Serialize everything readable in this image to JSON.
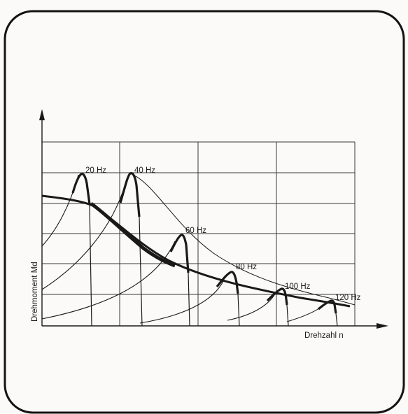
{
  "diagram": {
    "y_axis_label": "Drehmoment Md",
    "x_axis_label": "Drehzahl n",
    "curves": [
      {
        "label": "20 Hz"
      },
      {
        "label": "40 Hz"
      },
      {
        "label": "60 Hz"
      },
      {
        "label": "80 Hz"
      },
      {
        "label": "100 Hz"
      },
      {
        "label": "120 Hz"
      }
    ],
    "colors": {
      "ink": "#1b1918",
      "paper": "#fbfaf8",
      "frame": "#141312",
      "grid": "#3a3836"
    }
  }
}
